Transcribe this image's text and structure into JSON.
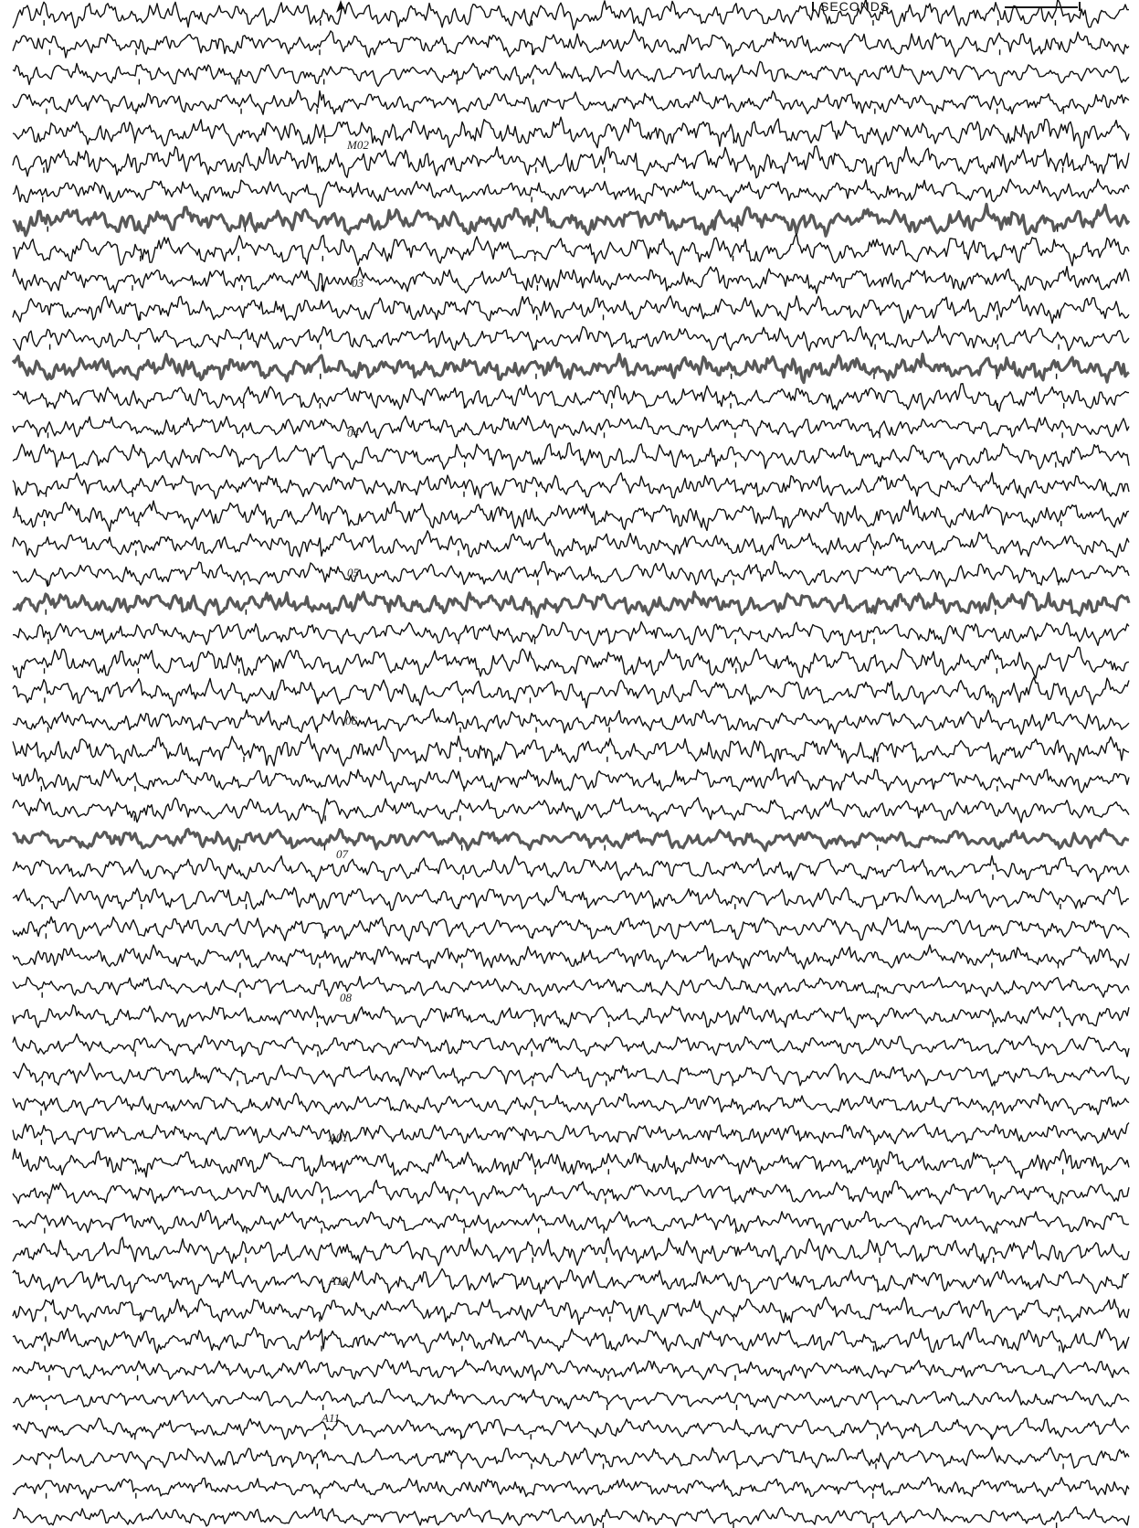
{
  "chart_data": {
    "type": "line",
    "title": "",
    "xlabel": "",
    "ylabel": "",
    "scale_label": "SECONDS",
    "trace_count": 52,
    "annotations": [
      "M02",
      "03",
      "04",
      "05",
      "06",
      "07",
      "08",
      "A01",
      "A10",
      "A11"
    ],
    "colors": {
      "trace": "#111111",
      "background": "#ffffff"
    }
  }
}
